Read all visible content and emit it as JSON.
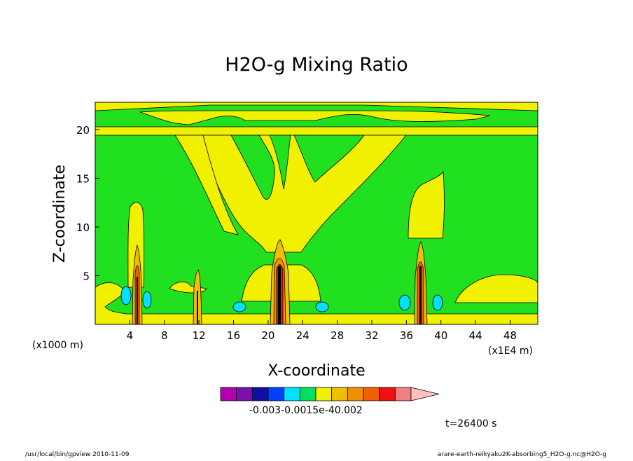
{
  "chart_data": {
    "type": "heatmap",
    "title": "H2O-g Mixing Ratio",
    "xlabel": "X-coordinate",
    "ylabel": "Z-coordinate",
    "x_unit_left": "(x1000 m)",
    "x_unit_right": "(x1E4 m)",
    "x_ticks": [
      "4",
      "8",
      "12",
      "16",
      "20",
      "24",
      "28",
      "32",
      "36",
      "40",
      "44",
      "48"
    ],
    "y_ticks": [
      "5",
      "10",
      "15",
      "20"
    ],
    "xlim": [
      0,
      51.2
    ],
    "ylim": [
      0,
      22.8
    ],
    "colorbar": {
      "colors": [
        "#b000b0",
        "#7a10b0",
        "#1010a0",
        "#0040ff",
        "#00e0ff",
        "#00e060",
        "#f0f000",
        "#f0c000",
        "#f09000",
        "#f06000",
        "#f01010",
        "#f08080",
        "#ffc0c0"
      ],
      "labels": [
        "-0.003",
        "-0.001",
        "5e-4",
        "0.002"
      ],
      "label_text": "-0.003-0.0015e-40.002"
    },
    "field": {
      "background_color": "#20e020",
      "features": [
        {
          "kind": "column",
          "x": 4.9,
          "z_top": 8.0
        },
        {
          "kind": "column",
          "x": 11.8,
          "z_top": 5.5
        },
        {
          "kind": "column",
          "x": 21.3,
          "z_top": 8.5
        },
        {
          "kind": "column",
          "x": 37.8,
          "z_top": 8.5
        }
      ]
    }
  },
  "time_label": "t=26400 s",
  "footer": {
    "left": "/usr/local/bin/gpview   2010-11-09",
    "right": "arare-earth-reikyaku2K-absorbing5_H2O-g.nc@H2O-g"
  }
}
